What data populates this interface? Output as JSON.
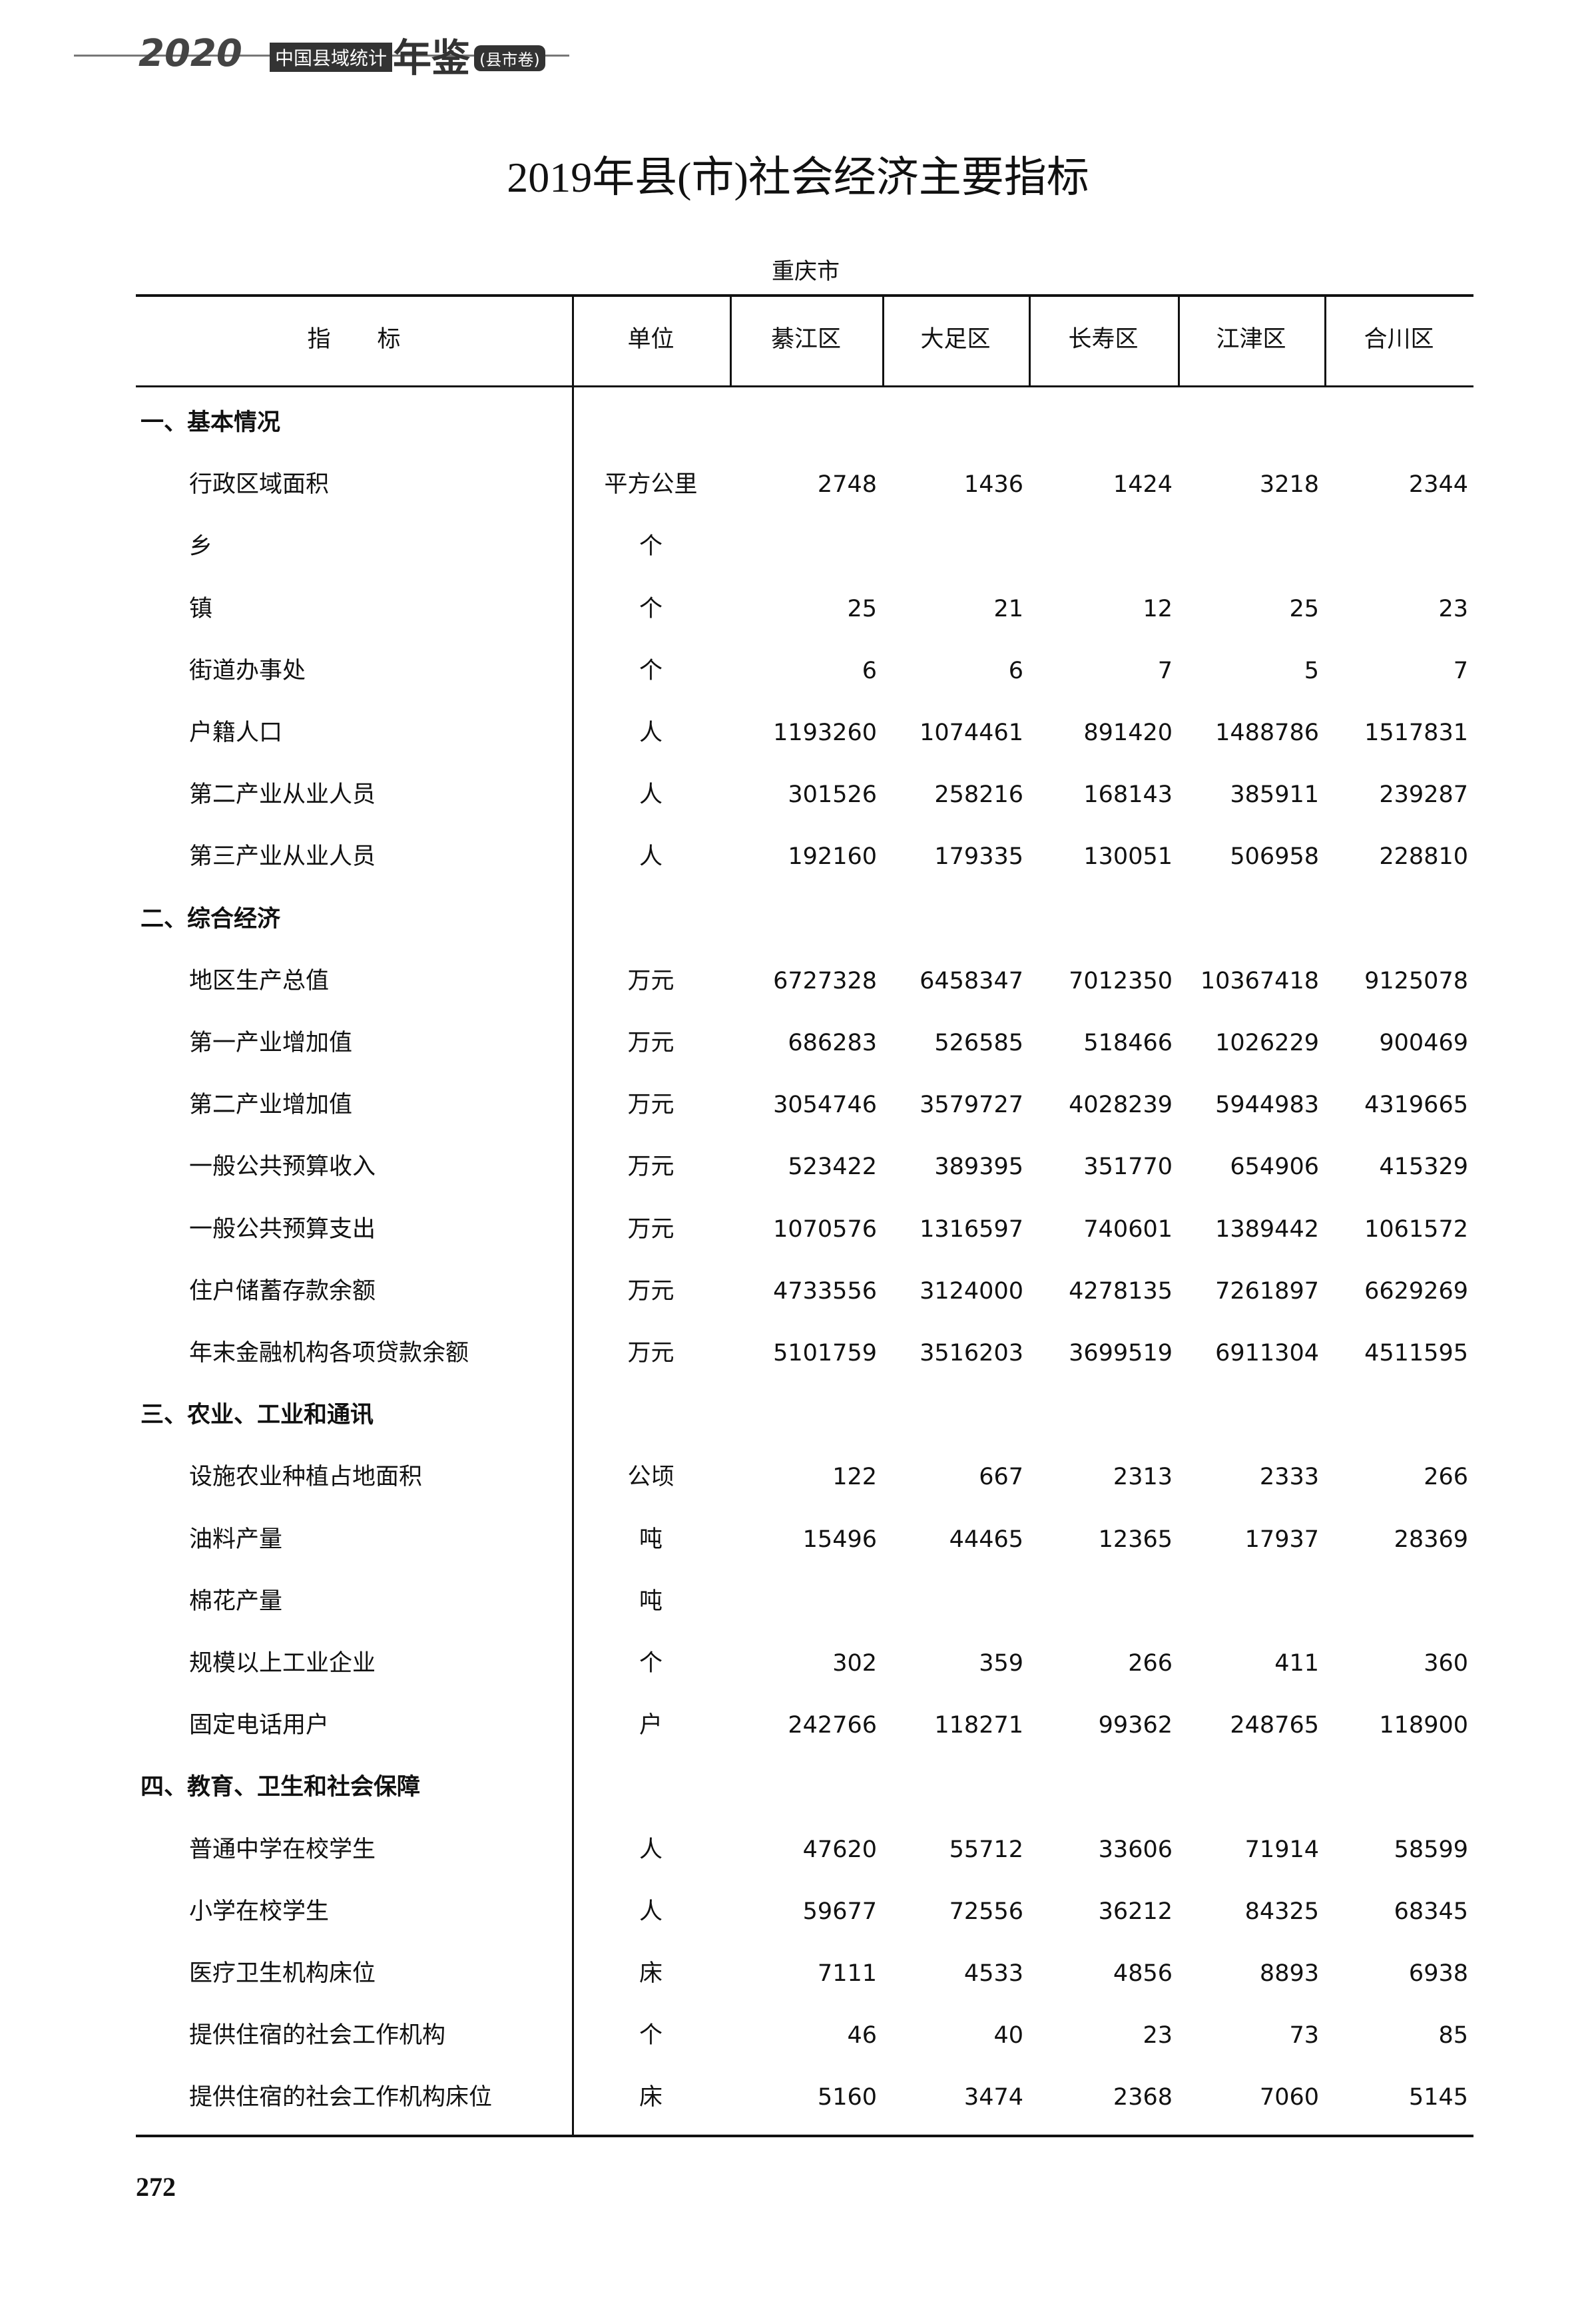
{
  "header": {
    "year": "2020",
    "name": "中国县域统计",
    "book": "年鉴",
    "volume": "(县市卷)"
  },
  "title": "2019年县(市)社会经济主要指标",
  "subtitle": "重庆市",
  "table": {
    "columns": [
      "指　　标",
      "单位",
      "綦江区",
      "大足区",
      "长寿区",
      "江津区",
      "合川区"
    ],
    "rows": [
      [
        "一、基本情况"
      ],
      [
        "行政区域面积",
        "平方公里",
        2748,
        1436,
        1424,
        3218,
        2344
      ],
      [
        "乡",
        "个"
      ],
      [
        "镇",
        "个",
        25,
        21,
        12,
        25,
        23
      ],
      [
        "街道办事处",
        "个",
        6,
        6,
        7,
        5,
        7
      ],
      [
        "户籍人口",
        "人",
        1193260,
        1074461,
        891420,
        1488786,
        1517831
      ],
      [
        "第二产业从业人员",
        "人",
        301526,
        258216,
        168143,
        385911,
        239287
      ],
      [
        "第三产业从业人员",
        "人",
        192160,
        179335,
        130051,
        506958,
        228810
      ],
      [
        "二、综合经济"
      ],
      [
        "地区生产总值",
        "万元",
        6727328,
        6458347,
        7012350,
        10367418,
        9125078
      ],
      [
        "第一产业增加值",
        "万元",
        686283,
        526585,
        518466,
        1026229,
        900469
      ],
      [
        "第二产业增加值",
        "万元",
        3054746,
        3579727,
        4028239,
        5944983,
        4319665
      ],
      [
        "一般公共预算收入",
        "万元",
        523422,
        389395,
        351770,
        654906,
        415329
      ],
      [
        "一般公共预算支出",
        "万元",
        1070576,
        1316597,
        740601,
        1389442,
        1061572
      ],
      [
        "住户储蓄存款余额",
        "万元",
        4733556,
        3124000,
        4278135,
        7261897,
        6629269
      ],
      [
        "年末金融机构各项贷款余额",
        "万元",
        5101759,
        3516203,
        3699519,
        6911304,
        4511595
      ],
      [
        "三、农业、工业和通讯"
      ],
      [
        "设施农业种植占地面积",
        "公顷",
        122,
        667,
        2313,
        2333,
        266
      ],
      [
        "油料产量",
        "吨",
        15496,
        44465,
        12365,
        17937,
        28369
      ],
      [
        "棉花产量",
        "吨"
      ],
      [
        "规模以上工业企业",
        "个",
        302,
        359,
        266,
        411,
        360
      ],
      [
        "固定电话用户",
        "户",
        242766,
        118271,
        99362,
        248765,
        118900
      ],
      [
        "四、教育、卫生和社会保障"
      ],
      [
        "普通中学在校学生",
        "人",
        47620,
        55712,
        33606,
        71914,
        58599
      ],
      [
        "小学在校学生",
        "人",
        59677,
        72556,
        36212,
        84325,
        68345
      ],
      [
        "医疗卫生机构床位",
        "床",
        7111,
        4533,
        4856,
        8893,
        6938
      ],
      [
        "提供住宿的社会工作机构",
        "个",
        46,
        40,
        23,
        73,
        85
      ],
      [
        "提供住宿的社会工作机构床位",
        "床",
        5160,
        3474,
        2368,
        7060,
        5145
      ]
    ]
  },
  "page_number": "272"
}
